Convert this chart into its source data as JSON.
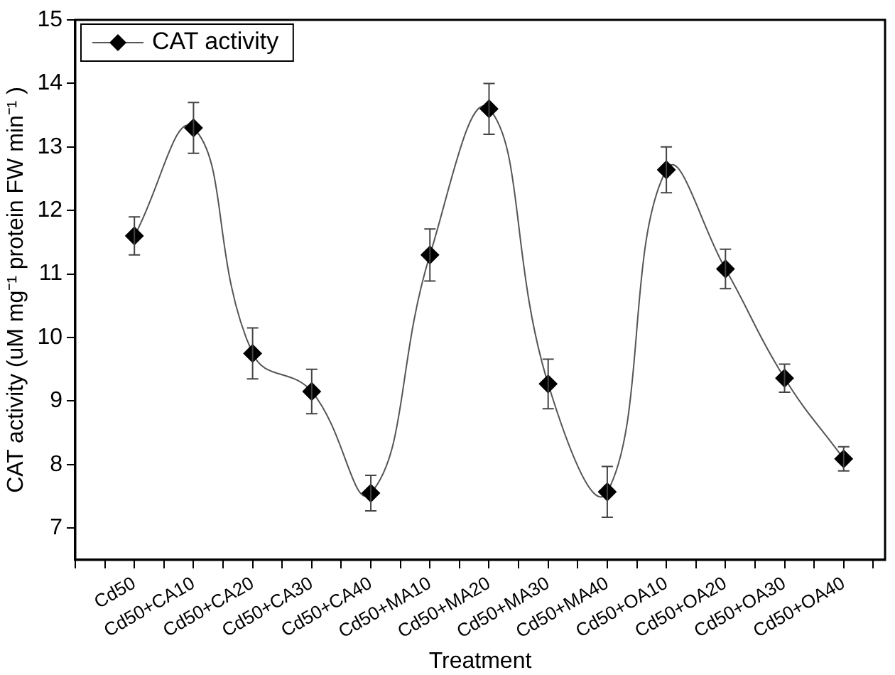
{
  "chart_data": {
    "type": "line",
    "xlabel": "Treatment",
    "ylabel": "CAT activity (uM mg⁻¹ protein FW min⁻¹ )",
    "categories": [
      "Cd50",
      "Cd50+CA10",
      "Cd50+CA20",
      "Cd50+CA30",
      "Cd50+CA40",
      "Cd50+MA10",
      "Cd50+MA20",
      "Cd50+MA30",
      "Cd50+MA40",
      "Cd50+OA10",
      "Cd50+OA20",
      "Cd50+OA30",
      "Cd50+OA40"
    ],
    "series": [
      {
        "name": "CAT activity",
        "color": "#000000",
        "values": [
          11.6,
          13.3,
          9.75,
          9.15,
          7.55,
          11.3,
          13.6,
          9.27,
          7.57,
          12.64,
          11.08,
          9.36,
          8.09
        ],
        "errors": [
          0.3,
          0.4,
          0.4,
          0.35,
          0.28,
          0.41,
          0.4,
          0.39,
          0.4,
          0.36,
          0.31,
          0.22,
          0.19
        ]
      }
    ],
    "ylim": [
      6.5,
      15
    ],
    "yticks": [
      7,
      8,
      9,
      10,
      11,
      12,
      13,
      14,
      15
    ],
    "grid": false,
    "legend": "top left",
    "marker": "diamond",
    "line_style": "solid"
  }
}
